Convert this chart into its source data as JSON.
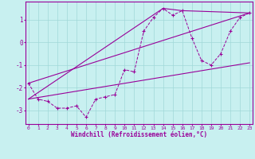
{
  "xlabel": "Windchill (Refroidissement éolien,°C)",
  "bg_color": "#c8f0f0",
  "line_color": "#990099",
  "grid_color": "#a0d8d8",
  "x_values": [
    0,
    1,
    2,
    3,
    4,
    5,
    6,
    7,
    8,
    9,
    10,
    11,
    12,
    13,
    14,
    15,
    16,
    17,
    18,
    19,
    20,
    21,
    22,
    23
  ],
  "series1": [
    -1.8,
    -2.5,
    -2.6,
    -2.9,
    -2.9,
    -2.8,
    -3.3,
    -2.5,
    -2.4,
    -2.3,
    -1.2,
    -1.3,
    0.5,
    1.1,
    1.5,
    1.2,
    1.4,
    0.2,
    -0.8,
    -1.0,
    -0.5,
    0.5,
    1.1,
    1.3
  ],
  "series2_x": [
    0,
    23
  ],
  "series2_y": [
    -1.8,
    1.3
  ],
  "series3_x": [
    0,
    14,
    16,
    23
  ],
  "series3_y": [
    -2.5,
    1.5,
    1.4,
    1.3
  ],
  "series4_x": [
    0,
    23
  ],
  "series4_y": [
    -2.5,
    -0.9
  ],
  "ylim": [
    -3.6,
    1.8
  ],
  "yticks": [
    -3,
    -2,
    -1,
    0,
    1
  ],
  "xticks": [
    0,
    1,
    2,
    3,
    4,
    5,
    6,
    7,
    8,
    9,
    10,
    11,
    12,
    13,
    14,
    15,
    16,
    17,
    18,
    19,
    20,
    21,
    22,
    23
  ],
  "xtick_fontsize": 4.5,
  "ytick_fontsize": 5.5,
  "xlabel_fontsize": 5.5
}
